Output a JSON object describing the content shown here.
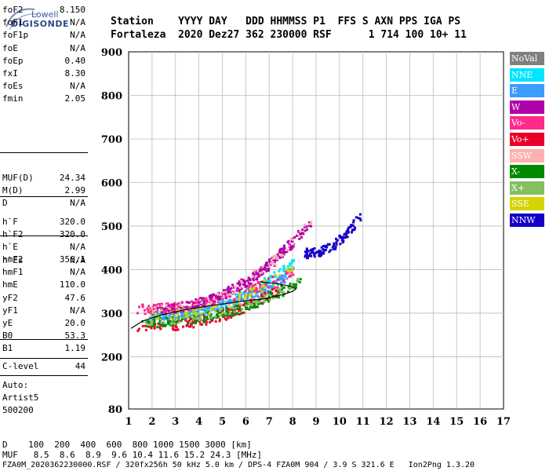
{
  "logo": {
    "top": "Lowell",
    "bottom": "DIGISONDE"
  },
  "header": {
    "line1": "Station    YYYY DAY   DDD HHMMSS P1  FFS S AXN PPS IGA PS",
    "line2": "Fortaleza  2020 Dez27 362 230000 RSF      1 714 100 10+ 11"
  },
  "params": {
    "g1": [
      {
        "label": "foF2",
        "value": "8.150"
      },
      {
        "label": "foF1",
        "value": "N/A"
      },
      {
        "label": "foF1p",
        "value": "N/A"
      },
      {
        "label": "foE",
        "value": "N/A"
      },
      {
        "label": "foEp",
        "value": "0.40"
      },
      {
        "label": "fxI",
        "value": "8.30"
      },
      {
        "label": "foEs",
        "value": "N/A"
      },
      {
        "label": "fmin",
        "value": "2.05"
      }
    ],
    "g2": [
      {
        "label": "MUF(D)",
        "value": "24.34"
      },
      {
        "label": "M(D)",
        "value": "2.99"
      },
      {
        "label": "D",
        "value": "N/A"
      }
    ],
    "g3": [
      {
        "label": "h`F",
        "value": "320.0"
      },
      {
        "label": "h`F2",
        "value": "320.0"
      },
      {
        "label": "h`E",
        "value": "N/A"
      },
      {
        "label": "h`Es",
        "value": "N/A"
      }
    ],
    "g4": [
      {
        "label": "hmF2",
        "value": "356.1"
      },
      {
        "label": "hmF1",
        "value": "N/A"
      },
      {
        "label": "hmE",
        "value": "110.0"
      },
      {
        "label": "yF2",
        "value": "47.6"
      },
      {
        "label": "yF1",
        "value": "N/A"
      },
      {
        "label": "yE",
        "value": "20.0"
      },
      {
        "label": "B0",
        "value": "53.3"
      },
      {
        "label": "B1",
        "value": "1.19"
      }
    ],
    "g5": [
      {
        "label": "C-level",
        "value": "44"
      }
    ]
  },
  "misc": {
    "auto": "Auto:",
    "artist": "Artist5",
    "code": "500200"
  },
  "legend": [
    {
      "label": "NoVal",
      "color": "#808080"
    },
    {
      "label": "NNE",
      "color": "#00e5ff"
    },
    {
      "label": "E",
      "color": "#3c9cff"
    },
    {
      "label": "W",
      "color": "#b000a8"
    },
    {
      "label": "Vo-",
      "color": "#ff2a8a"
    },
    {
      "label": "Vo+",
      "color": "#e8002a"
    },
    {
      "label": "SSW",
      "color": "#ffb0b0"
    },
    {
      "label": "X-",
      "color": "#008a00"
    },
    {
      "label": "X+",
      "color": "#84c060"
    },
    {
      "label": "SSE",
      "color": "#d4d400"
    },
    {
      "label": "NNW",
      "color": "#1400c8"
    }
  ],
  "footer": {
    "line1": "D    100  200  400  600  800 1000 1500 3000 [km]",
    "line2": "MUF   8.5  8.6  8.9  9.6 10.4 11.6 15.2 24.3 [MHz]",
    "line3": "FZA0M_2020362230000.RSF / 320fx256h 50 kHz 5.0 km / DPS-4 FZA0M 904 / 3.9 S 321.6 E   Ion2Png 1.3.20"
  },
  "chart_data": {
    "type": "scatter",
    "xlim": [
      1,
      17
    ],
    "ylim": [
      80,
      900
    ],
    "x_ticks": [
      "1",
      "2",
      "3",
      "4",
      "5",
      "6",
      "7",
      "8",
      "9",
      "10",
      "11",
      "12",
      "13",
      "14",
      "15",
      "16",
      "17"
    ],
    "y_ticks": [
      "80",
      "200",
      "300",
      "400",
      "500",
      "600",
      "700",
      "800",
      "900"
    ],
    "grid": true,
    "legend_position": "right",
    "profile_curve": {
      "f": [
        1.1,
        1.6,
        2.4,
        3.4,
        4.6,
        5.8,
        6.9,
        7.6,
        8.0,
        8.15,
        7.9,
        7.3,
        6.6
      ],
      "h": [
        265,
        282,
        296,
        308,
        318,
        327,
        334,
        343,
        350,
        356,
        362,
        368,
        372
      ]
    },
    "traces": [
      {
        "name": "NNE",
        "f_start": 2.0,
        "f_end": 8.0,
        "h_start": 300,
        "h_end": 420,
        "count": 150
      },
      {
        "name": "E",
        "f_start": 2.0,
        "f_end": 8.0,
        "h_start": 297,
        "h_end": 400,
        "count": 210
      },
      {
        "name": "W",
        "f_start": 2.0,
        "f_end": 8.7,
        "h_start": 312,
        "h_end": 510,
        "count": 330
      },
      {
        "name": "Vo-",
        "f_start": 1.3,
        "f_end": 8.0,
        "h_start": 312,
        "h_end": 400,
        "count": 120
      },
      {
        "name": "Vo+",
        "f_start": 1.3,
        "f_end": 7.5,
        "h_start": 268,
        "h_end": 360,
        "count": 150
      },
      {
        "name": "SSW",
        "f_start": 2.0,
        "f_end": 8.8,
        "h_start": 310,
        "h_end": 520,
        "count": 70
      },
      {
        "name": "X-",
        "f_start": 1.5,
        "f_end": 8.3,
        "h_start": 280,
        "h_end": 375,
        "count": 170
      },
      {
        "name": "X+",
        "f_start": 1.5,
        "f_end": 8.3,
        "h_start": 285,
        "h_end": 380,
        "count": 90
      },
      {
        "name": "SSE",
        "f_start": 2.0,
        "f_end": 8.0,
        "h_start": 300,
        "h_end": 410,
        "count": 60
      },
      {
        "name": "NNW",
        "f_start": 8.5,
        "f_end": 10.8,
        "h_start": 440,
        "h_end": 520,
        "count": 110
      }
    ]
  }
}
